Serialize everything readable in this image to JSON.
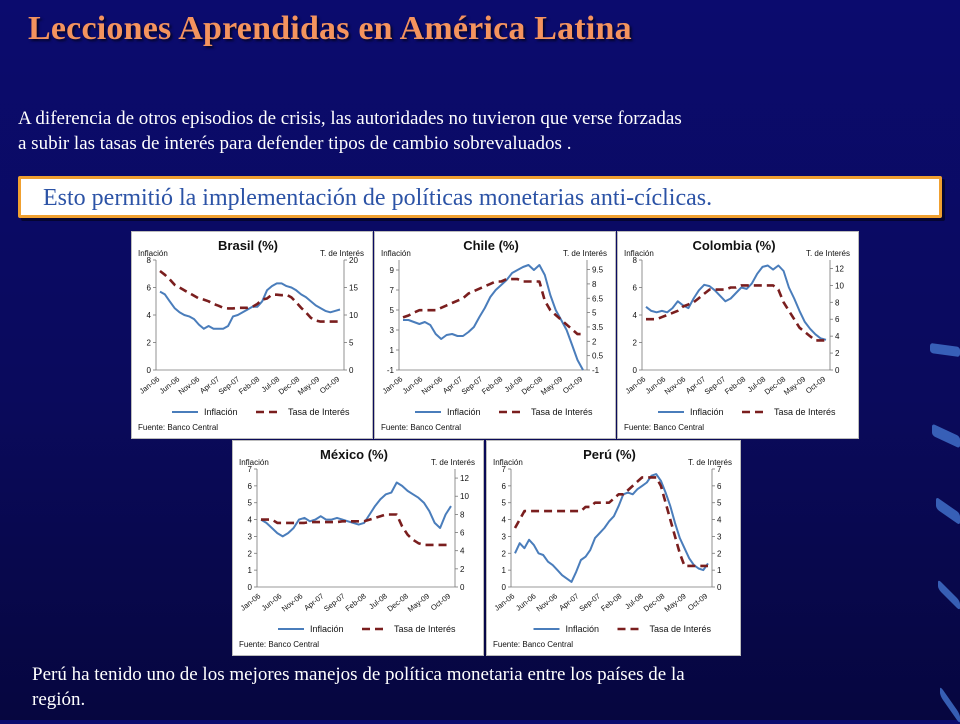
{
  "slide": {
    "title": "Lecciones Aprendidas en América Latina",
    "intro_line1": "A diferencia de otros episodios de crisis, las autoridades no tuvieron que verse forzadas",
    "intro_line2": "a subir las tasas de interés para defender tipos de cambio sobrevaluados .",
    "highlight": "Esto permitió la implementación  de políticas monetarias anti-cíclicas.",
    "footer_line1": "Perú ha tenido uno de los mejores manejos de política monetaria entre los países de la",
    "footer_line2": "región."
  },
  "colors": {
    "title": "#f4935e",
    "inflation": "#4a7dbb",
    "rate": "#7a1e1e",
    "highlight_border": "#f0a030",
    "highlight_text": "#2c53a6"
  },
  "chart_data": [
    {
      "type": "line",
      "title": "Brasil (%)",
      "left_axis_label": "Inflación",
      "right_axis_label": "T. de Interés",
      "x_ticks": [
        "Jan-06",
        "Jun-06",
        "Nov-06",
        "Apr-07",
        "Sep-07",
        "Feb-08",
        "Jul-08",
        "Dec-08",
        "May-09",
        "Oct-09"
      ],
      "y_left_ticks": [
        "0",
        "2",
        "4",
        "6",
        "8"
      ],
      "y_right_ticks": [
        "0",
        "5",
        "10",
        "15",
        "20"
      ],
      "ylim_left": [
        0,
        8
      ],
      "ylim_right": [
        0,
        20
      ],
      "legend": [
        "Inflación",
        "Tasa de Interés"
      ],
      "source": "Fuente: Banco Central",
      "series": [
        {
          "name": "Inflación",
          "axis": "left",
          "values": [
            5.7,
            5.5,
            5.0,
            4.5,
            4.2,
            4.0,
            3.9,
            3.7,
            3.3,
            3.0,
            3.2,
            3.0,
            3.0,
            3.0,
            3.2,
            3.9,
            4.0,
            4.2,
            4.4,
            4.6,
            4.6,
            5.0,
            5.8,
            6.1,
            6.3,
            6.3,
            6.1,
            6.0,
            5.8,
            5.5,
            5.3,
            5.0,
            4.7,
            4.5,
            4.3,
            4.2,
            4.3,
            4.4
          ]
        },
        {
          "name": "Tasa de Interés",
          "axis": "right",
          "values": [
            18.0,
            17.3,
            16.5,
            15.5,
            15.0,
            14.5,
            14.0,
            13.5,
            13.0,
            12.8,
            12.5,
            12.0,
            11.7,
            11.3,
            11.2,
            11.2,
            11.3,
            11.3,
            11.3,
            11.5,
            12.0,
            12.8,
            13.0,
            13.7,
            13.7,
            13.6,
            13.7,
            13.2,
            12.3,
            11.3,
            10.5,
            9.5,
            9.0,
            8.8,
            8.8,
            8.8,
            8.8,
            8.8
          ]
        }
      ]
    },
    {
      "type": "line",
      "title": "Chile (%)",
      "left_axis_label": "Inflación",
      "right_axis_label": "T. de Interés",
      "x_ticks": [
        "Jan-06",
        "Jun-06",
        "Nov-06",
        "Apr-07",
        "Sep-07",
        "Feb-08",
        "Jul-08",
        "Dec-08",
        "May-09",
        "Oct-09"
      ],
      "y_left_ticks": [
        "-1",
        "1",
        "3",
        "5",
        "7",
        "9"
      ],
      "y_right_ticks": [
        "-1",
        "0.5",
        "2",
        "3.5",
        "5",
        "6.5",
        "8",
        "9.5"
      ],
      "ylim_left": [
        -1,
        10
      ],
      "ylim_right": [
        -1,
        10.5
      ],
      "legend": [
        "Inflación",
        "Tasa de Interés"
      ],
      "source": "Fuente: Banco Central",
      "series": [
        {
          "name": "Inflación",
          "axis": "left",
          "values": [
            4.0,
            4.0,
            3.8,
            3.6,
            3.8,
            3.5,
            2.6,
            2.1,
            2.5,
            2.6,
            2.4,
            2.4,
            2.8,
            3.3,
            4.3,
            5.2,
            6.3,
            7.0,
            7.5,
            8.0,
            8.7,
            9.0,
            9.3,
            9.5,
            9.0,
            9.5,
            8.5,
            6.5,
            5.0,
            4.0,
            3.0,
            1.5,
            0.0,
            -1.0
          ]
        },
        {
          "name": "Tasa de Interés",
          "axis": "right",
          "values": [
            4.5,
            4.7,
            5.0,
            5.25,
            5.25,
            5.25,
            5.25,
            5.5,
            5.75,
            6.0,
            6.25,
            6.5,
            7.0,
            7.25,
            7.5,
            7.75,
            8.0,
            8.25,
            8.25,
            8.5,
            8.5,
            8.5,
            8.25,
            8.25,
            8.25,
            8.25,
            6.25,
            5.25,
            4.75,
            4.25,
            3.75,
            3.25,
            2.75,
            2.75
          ]
        }
      ]
    },
    {
      "type": "line",
      "title": "Colombia (%)",
      "left_axis_label": "Inflación",
      "right_axis_label": "T. de Interés",
      "x_ticks": [
        "Jan-06",
        "Jun-06",
        "Nov-06",
        "Apr-07",
        "Sep-07",
        "Feb-08",
        "Jul-08",
        "Dec-08",
        "May-09",
        "Oct-09"
      ],
      "y_left_ticks": [
        "0",
        "2",
        "4",
        "6",
        "8"
      ],
      "y_right_ticks": [
        "0",
        "2",
        "4",
        "6",
        "8",
        "10",
        "12"
      ],
      "ylim_left": [
        0,
        8
      ],
      "ylim_right": [
        0,
        13
      ],
      "legend": [
        "Inflación",
        "Tasa de Interés"
      ],
      "source": "Fuente: Banco Central",
      "series": [
        {
          "name": "Inflación",
          "axis": "left",
          "values": [
            4.6,
            4.3,
            4.2,
            4.3,
            4.2,
            4.5,
            5.0,
            4.7,
            4.5,
            5.2,
            5.8,
            6.2,
            6.1,
            5.8,
            5.4,
            5.0,
            5.2,
            5.6,
            6.0,
            5.9,
            6.3,
            7.0,
            7.5,
            7.6,
            7.3,
            7.6,
            7.2,
            6.0,
            5.2,
            4.3,
            3.5,
            3.0,
            2.6,
            2.3,
            2.2
          ]
        },
        {
          "name": "Tasa de Interés",
          "axis": "right",
          "values": [
            6.0,
            6.0,
            6.0,
            6.25,
            6.5,
            6.75,
            7.0,
            7.5,
            7.75,
            8.0,
            8.5,
            9.0,
            9.5,
            9.5,
            9.5,
            9.5,
            9.75,
            9.75,
            10.0,
            10.0,
            10.0,
            10.0,
            10.0,
            10.0,
            10.0,
            9.5,
            8.0,
            7.0,
            6.0,
            5.0,
            4.5,
            4.0,
            3.5,
            3.5,
            3.5
          ]
        }
      ]
    },
    {
      "type": "line",
      "title": "México (%)",
      "left_axis_label": "Inflación",
      "right_axis_label": "T. de Interés",
      "x_ticks": [
        "Jan-06",
        "Jun-06",
        "Nov-06",
        "Apr-07",
        "Sep-07",
        "Feb-08",
        "Jul-08",
        "Dec-08",
        "May-09",
        "Oct-09"
      ],
      "y_left_ticks": [
        "0",
        "1",
        "2",
        "3",
        "4",
        "5",
        "6",
        "7"
      ],
      "y_right_ticks": [
        "0",
        "2",
        "4",
        "6",
        "8",
        "10",
        "12"
      ],
      "ylim_left": [
        0,
        7
      ],
      "ylim_right": [
        0,
        13
      ],
      "legend": [
        "Inflación",
        "Tasa de Interés"
      ],
      "source": "Fuente: Banco Central",
      "series": [
        {
          "name": "Inflación",
          "axis": "left",
          "values": [
            4.0,
            3.8,
            3.5,
            3.2,
            3.0,
            3.2,
            3.5,
            4.0,
            4.1,
            3.9,
            4.0,
            4.2,
            4.0,
            4.0,
            4.1,
            4.0,
            3.9,
            3.8,
            3.7,
            3.8,
            4.3,
            4.8,
            5.2,
            5.5,
            5.6,
            6.2,
            6.0,
            5.7,
            5.5,
            5.3,
            5.0,
            4.5,
            3.8,
            3.5,
            4.3,
            4.8
          ]
        },
        {
          "name": "Tasa de Interés",
          "axis": "left_scaled",
          "values": [
            4.0,
            4.0,
            4.0,
            3.8,
            3.8,
            3.8,
            3.8,
            3.8,
            3.8,
            3.85,
            3.85,
            3.85,
            3.85,
            3.85,
            3.85,
            3.9,
            3.9,
            3.9,
            3.9,
            3.9,
            4.0,
            4.1,
            4.2,
            4.3,
            4.3,
            4.3,
            3.6,
            3.1,
            2.8,
            2.6,
            2.5,
            2.5,
            2.5,
            2.5,
            2.5,
            2.5
          ]
        }
      ]
    },
    {
      "type": "line",
      "title": "Perú (%)",
      "left_axis_label": "Inflación",
      "right_axis_label": "T. de Interés",
      "x_ticks": [
        "Jan-06",
        "Jun-06",
        "Nov-06",
        "Apr-07",
        "Sep-07",
        "Feb-08",
        "Jul-08",
        "Dec-08",
        "May-09",
        "Oct-09"
      ],
      "y_left_ticks": [
        "0",
        "1",
        "2",
        "3",
        "4",
        "5",
        "6",
        "7"
      ],
      "y_right_ticks": [
        "0",
        "1",
        "2",
        "3",
        "4",
        "5",
        "6",
        "7"
      ],
      "ylim_left": [
        0,
        7
      ],
      "ylim_right": [
        0,
        7
      ],
      "legend": [
        "Inflación",
        "Tasa de Interés"
      ],
      "source": "Fuente: Banco Central",
      "series": [
        {
          "name": "Inflación",
          "axis": "left",
          "values": [
            2.0,
            2.6,
            2.3,
            2.8,
            2.5,
            2.0,
            1.9,
            1.5,
            1.3,
            1.0,
            0.7,
            0.5,
            0.3,
            0.9,
            1.6,
            1.8,
            2.2,
            2.9,
            3.2,
            3.5,
            3.9,
            4.2,
            4.8,
            5.5,
            5.6,
            5.5,
            5.8,
            6.0,
            6.2,
            6.6,
            6.7,
            6.3,
            5.6,
            4.8,
            3.8,
            2.9,
            2.3,
            1.7,
            1.3,
            1.1,
            1.0,
            1.4
          ]
        },
        {
          "name": "Tasa de Interés",
          "axis": "left",
          "values": [
            3.5,
            4.0,
            4.5,
            4.5,
            4.5,
            4.5,
            4.5,
            4.5,
            4.5,
            4.5,
            4.5,
            4.5,
            4.5,
            4.5,
            4.5,
            4.75,
            4.75,
            5.0,
            5.0,
            5.0,
            5.0,
            5.25,
            5.5,
            5.5,
            5.75,
            6.0,
            6.25,
            6.5,
            6.5,
            6.5,
            6.5,
            6.0,
            5.0,
            4.0,
            3.0,
            2.0,
            1.25,
            1.25,
            1.25,
            1.25,
            1.25,
            1.25
          ]
        }
      ]
    }
  ]
}
